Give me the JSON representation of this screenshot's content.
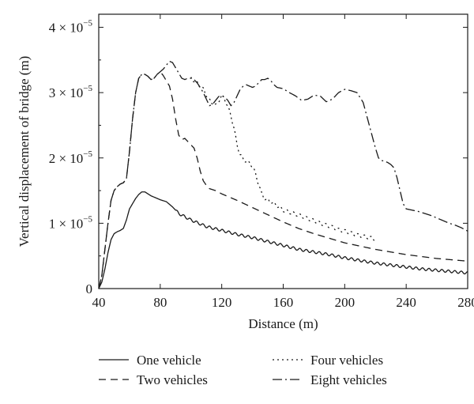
{
  "chart_data": {
    "type": "line",
    "xlabel": "Distance (m)",
    "ylabel": "Vertical displacement of bridge (m)",
    "xlim": [
      40,
      280
    ],
    "ylim": [
      0,
      4.2e-05
    ],
    "grid": false,
    "legend_position": "bottom",
    "x_ticks": [
      "40",
      "80",
      "120",
      "160",
      "200",
      "240",
      "280"
    ],
    "y_ticks": [
      {
        "base": "0",
        "exp": ""
      },
      {
        "base": "1 × 10",
        "exp": "−5"
      },
      {
        "base": "2 × 10",
        "exp": "−5"
      },
      {
        "base": "3 × 10",
        "exp": "−5"
      },
      {
        "base": "4 × 10",
        "exp": "−5"
      }
    ],
    "series": [
      {
        "name": "One vehicle",
        "dash": "solid",
        "ripple": 0.02,
        "x": [
          40,
          42,
          44,
          46,
          48,
          50,
          52,
          54,
          56,
          58,
          60,
          62,
          64,
          66,
          68,
          70,
          72,
          74,
          76,
          78,
          80,
          84,
          88,
          92,
          96,
          100,
          110,
          120,
          130,
          140,
          150,
          160,
          170,
          180,
          190,
          200,
          210,
          220,
          230,
          240,
          250,
          260,
          270,
          280
        ],
        "y": [
          0,
          1e-06,
          3e-06,
          5.5e-06,
          7.5e-06,
          8.4e-06,
          8.7e-06,
          8.9e-06,
          9.2e-06,
          1.05e-05,
          1.22e-05,
          1.3e-05,
          1.38e-05,
          1.44e-05,
          1.48e-05,
          1.48e-05,
          1.45e-05,
          1.42e-05,
          1.4e-05,
          1.38e-05,
          1.36e-05,
          1.33e-05,
          1.25e-05,
          1.15e-05,
          1.1e-05,
          1.05e-05,
          9.5e-06,
          8.9e-06,
          8.3e-06,
          7.8e-06,
          7.2e-06,
          6.6e-06,
          6e-06,
          5.6e-06,
          5.2e-06,
          4.7e-06,
          4.3e-06,
          3.9e-06,
          3.6e-06,
          3.3e-06,
          3e-06,
          2.8e-06,
          2.6e-06,
          2.4e-06
        ]
      },
      {
        "name": "Two vehicles",
        "dash": "9 6",
        "ripple": 0.0,
        "x": [
          40,
          42,
          44,
          46,
          48,
          50,
          52,
          54,
          56,
          58,
          60,
          62,
          64,
          66,
          68,
          70,
          72,
          74,
          76,
          78,
          80,
          82,
          84,
          86,
          88,
          90,
          92,
          94,
          96,
          98,
          100,
          102,
          104,
          106,
          108,
          110,
          112,
          116,
          120,
          130,
          140,
          150,
          160,
          170,
          180,
          190,
          200,
          210,
          220,
          230,
          240,
          250,
          260,
          270,
          280
        ],
        "y": [
          0,
          2e-06,
          6e-06,
          1e-05,
          1.35e-05,
          1.5e-05,
          1.56e-05,
          1.6e-05,
          1.62e-05,
          1.68e-05,
          2.1e-05,
          2.6e-05,
          3e-05,
          3.22e-05,
          3.28e-05,
          3.28e-05,
          3.25e-05,
          3.2e-05,
          3.22e-05,
          3.28e-05,
          3.32e-05,
          3.26e-05,
          3.18e-05,
          3.1e-05,
          2.9e-05,
          2.6e-05,
          2.35e-05,
          2.28e-05,
          2.3e-05,
          2.25e-05,
          2.2e-05,
          2.15e-05,
          2e-05,
          1.8e-05,
          1.65e-05,
          1.58e-05,
          1.53e-05,
          1.5e-05,
          1.45e-05,
          1.35e-05,
          1.24e-05,
          1.13e-05,
          1.02e-05,
          9.2e-06,
          8.4e-06,
          7.7e-06,
          7e-06,
          6.5e-06,
          6e-06,
          5.6e-06,
          5.2e-06,
          4.9e-06,
          4.6e-06,
          4.4e-06,
          4.2e-06
        ]
      },
      {
        "name": "Four vehicles",
        "dash": "2 4",
        "ripple": 0.025,
        "x": [
          100,
          104,
          108,
          112,
          116,
          120,
          122,
          124,
          126,
          128,
          130,
          132,
          134,
          136,
          138,
          140,
          142,
          144,
          146,
          148,
          150,
          152,
          154,
          156,
          158,
          160,
          164,
          168,
          172,
          176,
          180,
          184,
          188,
          192,
          196,
          200,
          204,
          208,
          212,
          216,
          220
        ],
        "y": [
          3.22e-05,
          3.15e-05,
          3.05e-05,
          2.88e-05,
          2.8e-05,
          2.95e-05,
          2.9e-05,
          2.78e-05,
          2.65e-05,
          2.45e-05,
          2.2e-05,
          2.05e-05,
          1.98e-05,
          1.95e-05,
          1.92e-05,
          1.88e-05,
          1.75e-05,
          1.6e-05,
          1.45e-05,
          1.38e-05,
          1.35e-05,
          1.33e-05,
          1.3e-05,
          1.27e-05,
          1.24e-05,
          1.2e-05,
          1.17e-05,
          1.14e-05,
          1.11e-05,
          1.07e-05,
          1.04e-05,
          1e-05,
          9.7e-06,
          9.4e-06,
          9e-06,
          8.8e-06,
          8.5e-06,
          8.2e-06,
          8e-06,
          7.8e-06,
          7.6e-06
        ]
      },
      {
        "name": "Eight vehicles",
        "dash": "12 4 2 4",
        "ripple": 0.0,
        "x": [
          40,
          42,
          44,
          46,
          48,
          50,
          52,
          54,
          56,
          58,
          60,
          62,
          64,
          66,
          68,
          70,
          72,
          74,
          76,
          78,
          80,
          82,
          84,
          86,
          88,
          90,
          92,
          94,
          96,
          98,
          100,
          102,
          104,
          106,
          108,
          110,
          112,
          114,
          116,
          118,
          120,
          122,
          124,
          126,
          128,
          130,
          132,
          134,
          136,
          138,
          140,
          142,
          144,
          146,
          148,
          150,
          152,
          154,
          156,
          158,
          160,
          164,
          168,
          172,
          176,
          180,
          184,
          188,
          192,
          196,
          200,
          204,
          208,
          212,
          216,
          220,
          222,
          224,
          226,
          228,
          230,
          232,
          234,
          236,
          238,
          240,
          244,
          248,
          252,
          256,
          260,
          264,
          268,
          272,
          276,
          280
        ],
        "y": [
          0,
          2e-06,
          6e-06,
          1e-05,
          1.35e-05,
          1.5e-05,
          1.56e-05,
          1.6e-05,
          1.62e-05,
          1.68e-05,
          2.1e-05,
          2.6e-05,
          3e-05,
          3.22e-05,
          3.28e-05,
          3.28e-05,
          3.25e-05,
          3.2e-05,
          3.22e-05,
          3.28e-05,
          3.32e-05,
          3.36e-05,
          3.42e-05,
          3.48e-05,
          3.46e-05,
          3.38e-05,
          3.3e-05,
          3.22e-05,
          3.2e-05,
          3.22e-05,
          3.22e-05,
          3.2e-05,
          3.15e-05,
          3.08e-05,
          3e-05,
          2.9e-05,
          2.8e-05,
          2.82e-05,
          2.88e-05,
          2.94e-05,
          2.95e-05,
          2.93e-05,
          2.88e-05,
          2.8e-05,
          2.85e-05,
          2.95e-05,
          3.05e-05,
          3.1e-05,
          3.12e-05,
          3.1e-05,
          3.08e-05,
          3.1e-05,
          3.15e-05,
          3.2e-05,
          3.2e-05,
          3.22e-05,
          3.18e-05,
          3.12e-05,
          3.08e-05,
          3.07e-05,
          3.06e-05,
          3e-05,
          2.95e-05,
          2.88e-05,
          2.9e-05,
          2.96e-05,
          2.95e-05,
          2.86e-05,
          2.9e-05,
          3e-05,
          3.05e-05,
          3.03e-05,
          3e-05,
          2.85e-05,
          2.5e-05,
          2.15e-05,
          2e-05,
          1.96e-05,
          1.95e-05,
          1.93e-05,
          1.9e-05,
          1.85e-05,
          1.7e-05,
          1.5e-05,
          1.3e-05,
          1.22e-05,
          1.2e-05,
          1.18e-05,
          1.15e-05,
          1.12e-05,
          1.08e-05,
          1.04e-05,
          1e-05,
          9.7e-06,
          9.3e-06,
          8.8e-06
        ]
      }
    ]
  }
}
